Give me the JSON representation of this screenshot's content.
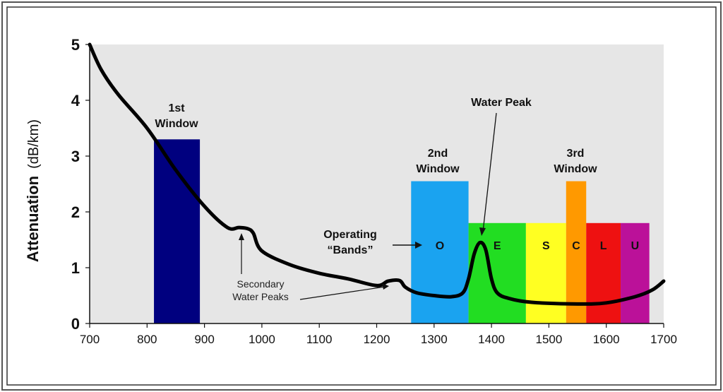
{
  "chart_data": {
    "type": "line",
    "xlabel": "",
    "ylabel_main": "Attenuation",
    "ylabel_unit": "(dB/km)",
    "xlim": [
      700,
      1700
    ],
    "ylim": [
      0,
      5
    ],
    "xticks": [
      700,
      800,
      900,
      1000,
      1100,
      1200,
      1300,
      1400,
      1500,
      1600,
      1700
    ],
    "yticks": [
      0,
      1,
      2,
      3,
      4,
      5
    ],
    "grid": false,
    "series": [
      {
        "x": [
          700,
          720,
          750,
          800,
          850,
          900,
          940,
          960,
          975,
          985,
          1000,
          1050,
          1100,
          1150,
          1200,
          1220,
          1240,
          1250,
          1270,
          1300,
          1330,
          1350,
          1360,
          1370,
          1380,
          1390,
          1400,
          1410,
          1430,
          1470,
          1550,
          1600,
          1650,
          1680,
          1700
        ],
        "y": [
          5.0,
          4.55,
          4.1,
          3.5,
          2.75,
          2.1,
          1.72,
          1.72,
          1.7,
          1.62,
          1.3,
          1.05,
          0.9,
          0.8,
          0.68,
          0.76,
          0.77,
          0.65,
          0.55,
          0.5,
          0.48,
          0.55,
          0.8,
          1.25,
          1.45,
          1.32,
          0.8,
          0.55,
          0.45,
          0.38,
          0.35,
          0.37,
          0.48,
          0.6,
          0.76
        ]
      }
    ],
    "windows": [
      {
        "label_line1": "1st",
        "label_line2": "Window",
        "x_start": 812,
        "x_end": 892,
        "y": 3.3,
        "color": "#00007f"
      },
      {
        "label_line1": "2nd",
        "label_line2": "Window",
        "x_start": 1258,
        "x_end": 1360,
        "y": 2.55,
        "color": "#1aa3f0"
      },
      {
        "label_line1": "3rd",
        "label_line2": "Window",
        "x_start": 1530,
        "x_end": 1565,
        "y": 2.55,
        "color": "#ff9900"
      }
    ],
    "bands": [
      {
        "letter": "O",
        "x_start": 1260,
        "x_end": 1360,
        "y": 2.55,
        "color": "#1aa3f0"
      },
      {
        "letter": "E",
        "x_start": 1360,
        "x_end": 1460,
        "y": 1.8,
        "color": "#22dd22"
      },
      {
        "letter": "S",
        "x_start": 1460,
        "x_end": 1530,
        "y": 1.8,
        "color": "#ffff22"
      },
      {
        "letter": "C",
        "x_start": 1530,
        "x_end": 1565,
        "y": 2.55,
        "color": "#ff9900"
      },
      {
        "letter": "L",
        "x_start": 1565,
        "x_end": 1625,
        "y": 1.8,
        "color": "#ee1111"
      },
      {
        "letter": "U",
        "x_start": 1625,
        "x_end": 1675,
        "y": 1.8,
        "color": "#bb1199"
      }
    ],
    "annotations": {
      "water_peak": "Water Peak",
      "operating_line1": "Operating",
      "operating_line2": "“Bands”",
      "secondary_line1": "Secondary",
      "secondary_line2": "Water Peaks"
    },
    "colors": {
      "plot_bg": "#e6e6e6",
      "curve": "#000000"
    }
  }
}
